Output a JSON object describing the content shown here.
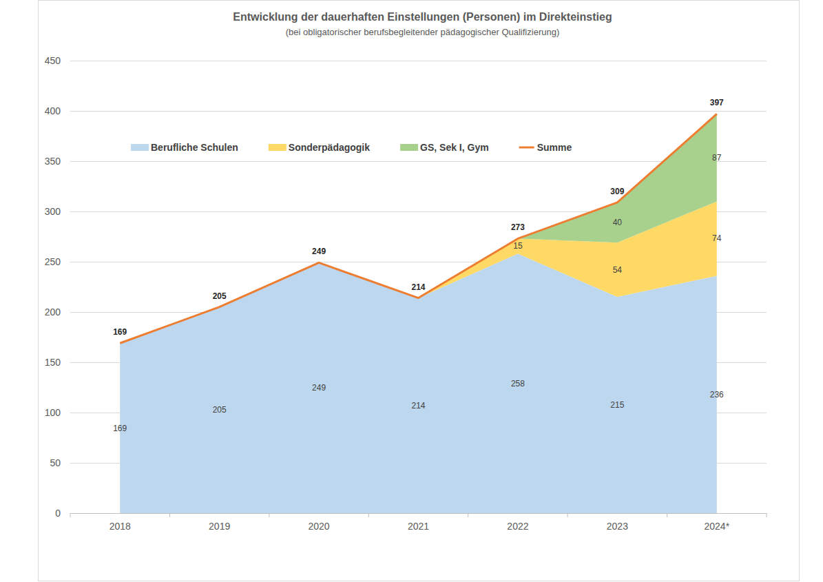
{
  "chart_data": {
    "type": "area",
    "title": "Entwicklung der dauerhaften Einstellungen (Personen) im Direkteinstieg",
    "subtitle": "(bei obligatorischer berufsbegleitender pädagogischer Qualifizierung)",
    "categories": [
      "2018",
      "2019",
      "2020",
      "2021",
      "2022",
      "2023",
      "2024*"
    ],
    "series": [
      {
        "name": "Berufliche Schulen",
        "type": "area",
        "color": "#bdd7ee",
        "values": [
          169,
          205,
          249,
          214,
          258,
          215,
          236
        ]
      },
      {
        "name": "Sonderpädagogik",
        "type": "area",
        "color": "#ffd966",
        "values": [
          null,
          null,
          null,
          0,
          15,
          54,
          74
        ]
      },
      {
        "name": "GS, Sek I, Gym",
        "type": "area",
        "color": "#a9d18e",
        "values": [
          null,
          null,
          null,
          null,
          0,
          40,
          87
        ]
      },
      {
        "name": "Summe",
        "type": "line",
        "color": "#ed7d31",
        "values": [
          169,
          205,
          249,
          214,
          273,
          309,
          397
        ]
      }
    ],
    "stacked": true,
    "data_labels": true,
    "ylim": [
      0,
      450
    ],
    "yticks": [
      0,
      50,
      100,
      150,
      200,
      250,
      300,
      350,
      400,
      450
    ],
    "grid": true,
    "legend": "top-left"
  }
}
